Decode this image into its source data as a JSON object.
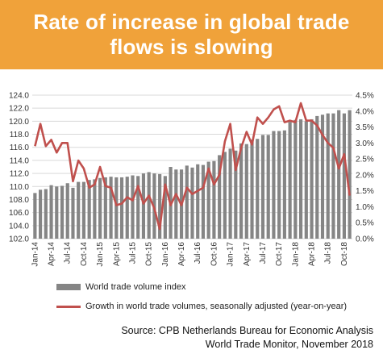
{
  "header": {
    "title_line1": "Rate of increase in global trade",
    "title_line2": "flows is slowing"
  },
  "source": {
    "line1": "Source: CPB Netherlands Bureau for Economic Analysis",
    "line2": "World Trade Monitor, November 2018"
  },
  "colors": {
    "banner": "#f0a23a",
    "bars": "#858585",
    "line": "#c0504d"
  },
  "chart_data": {
    "type": "bar",
    "x": [
      "Jan-14",
      "Feb-14",
      "Mar-14",
      "Apr-14",
      "May-14",
      "Jun-14",
      "Jul-14",
      "Aug-14",
      "Sep-14",
      "Oct-14",
      "Nov-14",
      "Dec-14",
      "Jan-15",
      "Feb-15",
      "Mar-15",
      "Apr-15",
      "May-15",
      "Jun-15",
      "Jul-15",
      "Aug-15",
      "Sep-15",
      "Oct-15",
      "Nov-15",
      "Dec-15",
      "Jan-16",
      "Feb-16",
      "Mar-16",
      "Apr-16",
      "May-16",
      "Jun-16",
      "Jul-16",
      "Aug-16",
      "Sep-16",
      "Oct-16",
      "Nov-16",
      "Dec-16",
      "Jan-17",
      "Feb-17",
      "Mar-17",
      "Apr-17",
      "May-17",
      "Jun-17",
      "Jul-17",
      "Aug-17",
      "Sep-17",
      "Oct-17",
      "Nov-17",
      "Dec-17",
      "Jan-18",
      "Feb-18",
      "Mar-18",
      "Apr-18",
      "May-18",
      "Jun-18",
      "Jul-18",
      "Aug-18",
      "Sep-18",
      "Oct-18",
      "Nov-18"
    ],
    "tick_labels": [
      "Jan-14",
      "Apr-14",
      "Jul-14",
      "Oct-14",
      "Jan-15",
      "Apr-15",
      "Jul-15",
      "Oct-15",
      "Jan-16",
      "Apr-16",
      "Jul-16",
      "Oct-16",
      "Jan-17",
      "Apr-17",
      "Jul-17",
      "Oct-17",
      "Jan-18",
      "Apr-18",
      "Jul-18",
      "Oct-18"
    ],
    "series": [
      {
        "name": "World trade volume index",
        "type": "bar",
        "axis": "left",
        "values": [
          109.0,
          109.5,
          109.6,
          110.2,
          110.0,
          110.1,
          110.5,
          109.8,
          110.7,
          110.7,
          111.0,
          111.1,
          111.3,
          111.4,
          111.5,
          111.4,
          111.4,
          111.5,
          111.7,
          111.6,
          112.0,
          112.2,
          112.0,
          111.9,
          111.6,
          113.0,
          112.6,
          112.6,
          113.2,
          112.9,
          113.4,
          113.3,
          113.8,
          113.9,
          114.8,
          115.3,
          115.8,
          115.5,
          116.6,
          116.5,
          117.2,
          117.3,
          117.9,
          117.9,
          118.5,
          118.5,
          118.6,
          119.9,
          120.2,
          120.3,
          120.0,
          120.3,
          120.8,
          121.0,
          121.2,
          121.2,
          121.7,
          121.2,
          121.7
        ]
      },
      {
        "name": "Growth in world trade volumes, seasonally adjusted (year-on-year)",
        "type": "line",
        "axis": "right",
        "values": [
          2.9,
          3.6,
          2.9,
          3.1,
          2.7,
          3.0,
          3.0,
          1.8,
          2.45,
          2.2,
          1.6,
          1.7,
          2.25,
          1.65,
          1.6,
          1.05,
          1.1,
          1.3,
          1.2,
          1.65,
          1.1,
          1.35,
          0.95,
          0.3,
          1.7,
          1.05,
          1.4,
          1.05,
          1.6,
          1.4,
          1.5,
          1.6,
          2.2,
          1.7,
          2.0,
          3.05,
          3.6,
          2.15,
          2.85,
          3.35,
          2.95,
          3.8,
          3.6,
          3.8,
          4.05,
          4.15,
          3.65,
          3.7,
          3.65,
          4.25,
          3.7,
          3.7,
          3.55,
          3.25,
          3.0,
          2.85,
          2.2,
          2.65,
          1.35
        ]
      }
    ],
    "y_left": {
      "lim": [
        102.0,
        124.0
      ],
      "ticks": [
        "102.0",
        "104.0",
        "106.0",
        "108.0",
        "110.0",
        "112.0",
        "114.0",
        "116.0",
        "118.0",
        "120.0",
        "122.0",
        "124.0"
      ]
    },
    "y_right": {
      "lim": [
        0.0,
        4.5
      ],
      "ticks": [
        "0.0%",
        "0.5%",
        "1.0%",
        "1.5%",
        "2.0%",
        "2.5%",
        "3.0%",
        "3.5%",
        "4.0%",
        "4.5%"
      ]
    },
    "grid": true,
    "legend": "bottom"
  }
}
